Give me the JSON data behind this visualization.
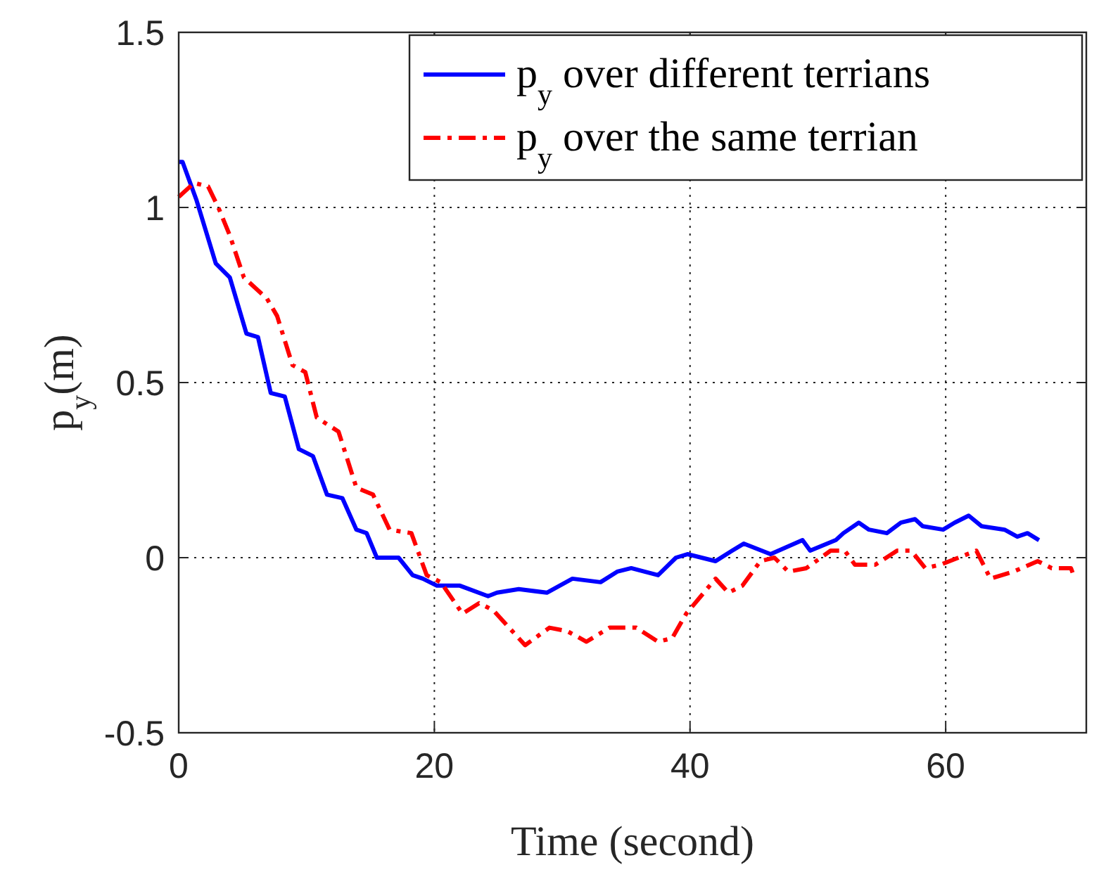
{
  "chart_data": {
    "type": "line",
    "xlabel": "Time (second)",
    "ylabel": "p$_{y}$(m)",
    "xlim": [
      0,
      71
    ],
    "ylim": [
      -0.5,
      1.5
    ],
    "xticks": [
      0,
      20,
      40,
      60
    ],
    "yticks": [
      -0.5,
      0,
      0.5,
      1,
      1.5
    ],
    "grid": true,
    "legend": "top right",
    "series": [
      {
        "name": "p$_{y}$ over different terrians",
        "color": "#0000ff",
        "line_style": "solid",
        "x": [
          0,
          0.3,
          1.4,
          2.9,
          4.0,
          5.3,
          6.2,
          7.2,
          8.3,
          9.4,
          10.5,
          11.6,
          12.8,
          13.9,
          14.7,
          15.5,
          17.2,
          18.3,
          19.1,
          20.2,
          22.0,
          24.2,
          24.9,
          26.6,
          28.8,
          30.8,
          33.0,
          34.3,
          35.4,
          37.5,
          38.9,
          39.8,
          42.0,
          43.3,
          44.2,
          46.3,
          48.8,
          49.4,
          51.4,
          52.0,
          53.2,
          54.0,
          55.4,
          56.5,
          57.6,
          58.2,
          59.8,
          60.7,
          61.8,
          62.8,
          64.6,
          65.6,
          66.4,
          67.3
        ],
        "values": [
          1.13,
          1.13,
          1.02,
          0.84,
          0.8,
          0.64,
          0.63,
          0.47,
          0.46,
          0.31,
          0.29,
          0.18,
          0.17,
          0.08,
          0.07,
          0.0,
          0.0,
          -0.05,
          -0.06,
          -0.08,
          -0.08,
          -0.11,
          -0.1,
          -0.09,
          -0.1,
          -0.06,
          -0.07,
          -0.04,
          -0.03,
          -0.05,
          0.0,
          0.01,
          -0.01,
          0.02,
          0.04,
          0.01,
          0.05,
          0.02,
          0.05,
          0.07,
          0.1,
          0.08,
          0.07,
          0.1,
          0.11,
          0.09,
          0.08,
          0.1,
          0.12,
          0.09,
          0.08,
          0.06,
          0.07,
          0.05
        ]
      },
      {
        "name": "p$_{y}$ over the same terrian",
        "color": "#ff0000",
        "line_style": "dashdot",
        "x": [
          0,
          1.2,
          2.3,
          3.1,
          4.0,
          5.1,
          6.9,
          7.7,
          8.9,
          9.9,
          10.8,
          12.5,
          13.9,
          15.2,
          16.5,
          18.2,
          19.4,
          20.5,
          22.2,
          23.5,
          24.6,
          27.1,
          29.0,
          30.4,
          31.9,
          33.7,
          35.8,
          37.5,
          38.6,
          39.7,
          42.0,
          43.0,
          44.1,
          45.5,
          46.6,
          47.7,
          49.1,
          51.0,
          52.1,
          52.9,
          54.5,
          56.2,
          57.3,
          58.4,
          59.6,
          62.4,
          63.5,
          65.3,
          67.2,
          68.3,
          69.8,
          70.1
        ],
        "values": [
          1.03,
          1.07,
          1.06,
          1.0,
          0.92,
          0.8,
          0.74,
          0.69,
          0.55,
          0.53,
          0.4,
          0.36,
          0.2,
          0.18,
          0.08,
          0.07,
          -0.05,
          -0.07,
          -0.16,
          -0.13,
          -0.15,
          -0.25,
          -0.2,
          -0.21,
          -0.24,
          -0.2,
          -0.2,
          -0.24,
          -0.23,
          -0.16,
          -0.06,
          -0.1,
          -0.08,
          -0.01,
          0.0,
          -0.04,
          -0.03,
          0.02,
          0.02,
          -0.02,
          -0.02,
          0.02,
          0.02,
          -0.03,
          -0.02,
          0.02,
          -0.06,
          -0.04,
          -0.01,
          -0.03,
          -0.03,
          -0.06
        ]
      }
    ]
  }
}
